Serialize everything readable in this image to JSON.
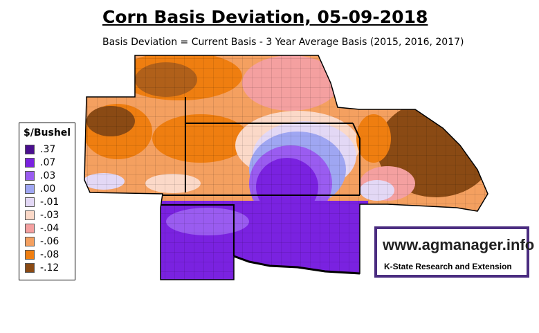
{
  "title": "Corn Basis Deviation, 05-09-2018",
  "subtitle": "Basis Deviation = Current Basis - 3 Year Average Basis (2015, 2016, 2017)",
  "legend": {
    "title": "$/Bushel",
    "items": [
      {
        "label": ".37",
        "color": "#4a0f8f"
      },
      {
        "label": ".07",
        "color": "#7a22e0"
      },
      {
        "label": ".03",
        "color": "#9a5cf0"
      },
      {
        "label": ".00",
        "color": "#9fa6f2"
      },
      {
        "label": "-.01",
        "color": "#e3d8f5"
      },
      {
        "label": "-.03",
        "color": "#fbd9c8"
      },
      {
        "label": "-.04",
        "color": "#f4a0a0"
      },
      {
        "label": "-.06",
        "color": "#f4a060"
      },
      {
        "label": "-.08",
        "color": "#ef7e10"
      },
      {
        "label": "-.12",
        "color": "#8a4a14"
      }
    ]
  },
  "brand": {
    "url": "www.agmanager.info",
    "org": "K-State Research and Extension",
    "border_color": "#4a2c80"
  }
}
